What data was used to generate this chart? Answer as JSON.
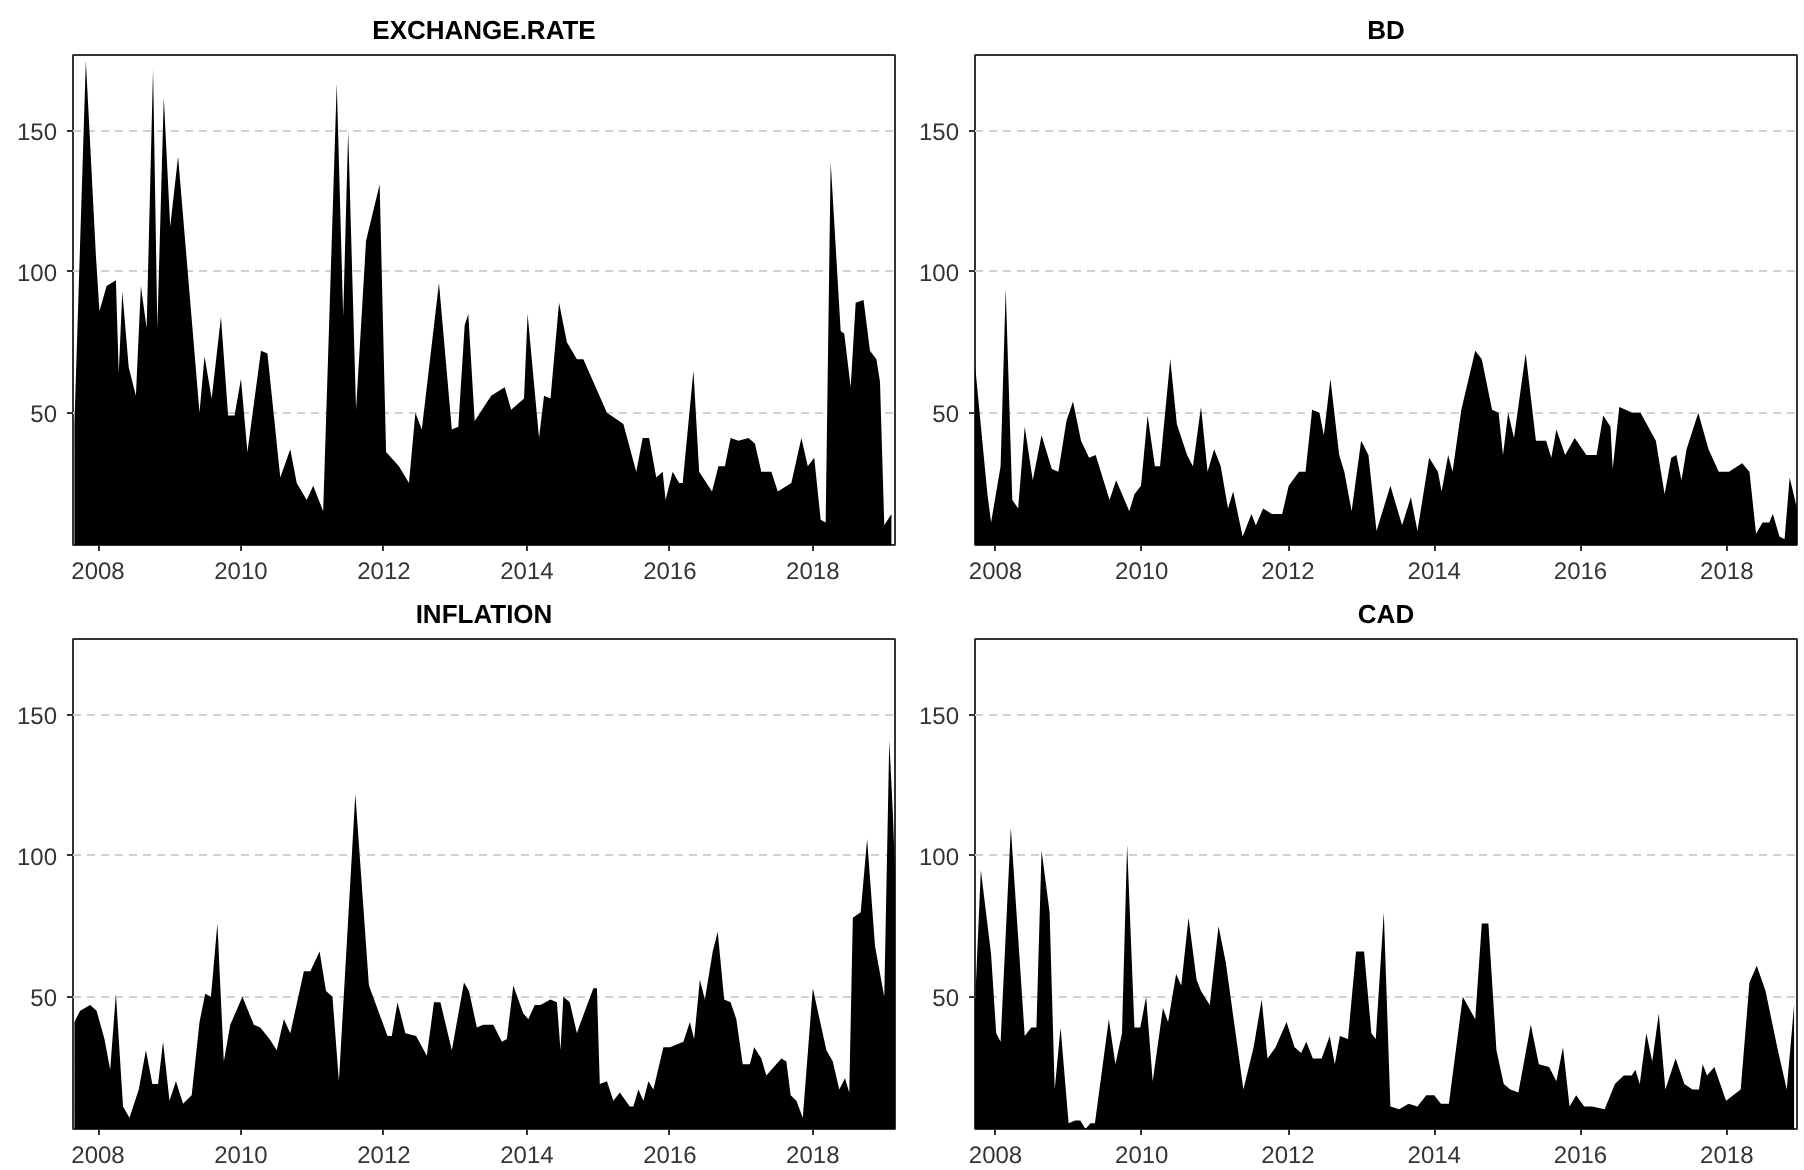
{
  "chart_data": [
    {
      "type": "area",
      "title": "EXCHANGE.RATE",
      "color": "#000000",
      "xlim": [
        2007.65,
        2019.15
      ],
      "ylim": [
        3,
        177
      ],
      "xticks": [
        2008,
        2010,
        2012,
        2014,
        2016,
        2018
      ],
      "yticks": [
        50,
        100,
        150
      ],
      "grid": "y",
      "x": [
        2007.67,
        2007.83,
        2007.97,
        2008.02,
        2008.12,
        2008.25,
        2008.29,
        2008.34,
        2008.43,
        2008.53,
        2008.6,
        2008.68,
        2008.77,
        2008.83,
        2008.92,
        2009.01,
        2009.12,
        2009.2,
        2009.33,
        2009.42,
        2009.49,
        2009.59,
        2009.72,
        2009.82,
        2009.91,
        2010.0,
        2010.09,
        2010.28,
        2010.37,
        2010.55,
        2010.69,
        2010.78,
        2010.92,
        2011.01,
        2011.15,
        2011.34,
        2011.43,
        2011.5,
        2011.61,
        2011.75,
        2011.94,
        2012.03,
        2012.21,
        2012.35,
        2012.44,
        2012.53,
        2012.77,
        2012.95,
        2013.04,
        2013.13,
        2013.18,
        2013.27,
        2013.5,
        2013.69,
        2013.78,
        2013.96,
        2014.01,
        2014.17,
        2014.24,
        2014.33,
        2014.45,
        2014.56,
        2014.7,
        2014.79,
        2015.12,
        2015.35,
        2015.53,
        2015.62,
        2015.71,
        2015.81,
        2015.9,
        2015.94,
        2016.04,
        2016.13,
        2016.18,
        2016.33,
        2016.41,
        2016.59,
        2016.68,
        2016.77,
        2016.85,
        2016.96,
        2017.1,
        2017.19,
        2017.28,
        2017.42,
        2017.51,
        2017.7,
        2017.84,
        2017.93,
        2018.02,
        2018.11,
        2018.18,
        2018.25,
        2018.39,
        2018.44,
        2018.53,
        2018.6,
        2018.71,
        2018.8,
        2018.89,
        2018.94,
        2019.0,
        2019.1
      ],
      "values": [
        46,
        175,
        106,
        86,
        95,
        97,
        64,
        93,
        66,
        56,
        95,
        80,
        172,
        80,
        162,
        116,
        141,
        null,
        null,
        50,
        70,
        55,
        84,
        49,
        49,
        62,
        36,
        72,
        71,
        27,
        37,
        25,
        19,
        24,
        15,
        167,
        84,
        150,
        51,
        111,
        131,
        36,
        31,
        25,
        50,
        44,
        96,
        44,
        45,
        81,
        85,
        47,
        56,
        59,
        51,
        55,
        85,
        41,
        56,
        55,
        89,
        75,
        69,
        69,
        50,
        46,
        29,
        41,
        41,
        27,
        29,
        19,
        29,
        25,
        25,
        65,
        29,
        22,
        31,
        31,
        41,
        40,
        41,
        39,
        29,
        29,
        22,
        25,
        41,
        31,
        34,
        12,
        11,
        139,
        79,
        78,
        59,
        89,
        90,
        72,
        69,
        61,
        10,
        14
      ]
    },
    {
      "type": "area",
      "title": "BD",
      "color": "#000000",
      "xlim": [
        2007.72,
        2018.96
      ],
      "ylim": [
        3,
        177
      ],
      "xticks": [
        2008,
        2010,
        2012,
        2014,
        2016,
        2018
      ],
      "yticks": [
        50,
        100,
        150
      ],
      "grid": "y",
      "x": [
        2007.72,
        2007.89,
        2007.94,
        2008.07,
        2008.14,
        2008.23,
        2008.31,
        2008.4,
        2008.51,
        2008.63,
        2008.77,
        2008.86,
        2008.97,
        2009.06,
        2009.17,
        2009.28,
        2009.37,
        2009.56,
        2009.65,
        2009.83,
        2009.9,
        2009.99,
        2010.08,
        2010.18,
        2010.25,
        2010.39,
        2010.48,
        2010.62,
        2010.7,
        2010.81,
        2010.9,
        2010.99,
        2011.08,
        2011.18,
        2011.25,
        2011.38,
        2011.5,
        2011.56,
        2011.66,
        2011.78,
        2011.92,
        2012.01,
        2012.15,
        2012.24,
        2012.33,
        2012.43,
        2012.49,
        2012.58,
        2012.7,
        2012.77,
        2012.87,
        2013.0,
        2013.1,
        2013.21,
        2013.4,
        2013.56,
        2013.68,
        2013.77,
        2013.93,
        2014.05,
        2014.1,
        2014.19,
        2014.25,
        2014.37,
        2014.56,
        2014.65,
        2014.79,
        2014.88,
        2014.94,
        2015.01,
        2015.09,
        2015.25,
        2015.39,
        2015.53,
        2015.6,
        2015.67,
        2015.79,
        2015.92,
        2016.08,
        2016.22,
        2016.31,
        2016.41,
        2016.44,
        2016.53,
        2016.71,
        2016.82,
        2017.03,
        2017.15,
        2017.24,
        2017.31,
        2017.38,
        2017.45,
        2017.61,
        2017.75,
        2017.89,
        2018.03,
        2018.21,
        2018.31,
        2018.4,
        2018.49,
        2018.58,
        2018.63,
        2018.72,
        2018.79,
        2018.86,
        2018.96
      ],
      "values": [
        67,
        21,
        11,
        31,
        94,
        19,
        16,
        45,
        26,
        42,
        30,
        29,
        47,
        54,
        40,
        34,
        35,
        19,
        26,
        15,
        21,
        24,
        49,
        31,
        31,
        69,
        46,
        35,
        31,
        52,
        29,
        37,
        31,
        16,
        22,
        6,
        14,
        10,
        16,
        14,
        14,
        24,
        29,
        29,
        51,
        50,
        42,
        62,
        35,
        29,
        15,
        40,
        35,
        8,
        24,
        10,
        20,
        8,
        34,
        29,
        22,
        35,
        29,
        51,
        72,
        69,
        51,
        50,
        35,
        50,
        41,
        71,
        40,
        40,
        34,
        44,
        35,
        41,
        35,
        35,
        49,
        45,
        30,
        52,
        50,
        50,
        40,
        21,
        34,
        35,
        26,
        37,
        50,
        37,
        29,
        29,
        32,
        29,
        7,
        11,
        11,
        14,
        6,
        5,
        27,
        16
      ]
    },
    {
      "type": "area",
      "title": "INFLATION",
      "color": "#000000",
      "xlim": [
        2007.65,
        2019.15
      ],
      "ylim": [
        3,
        177
      ],
      "xticks": [
        2008,
        2010,
        2012,
        2014,
        2016,
        2018
      ],
      "yticks": [
        50,
        100,
        150
      ],
      "grid": "y",
      "x": [
        2007.67,
        2007.75,
        2007.89,
        2007.98,
        2008.09,
        2008.17,
        2008.25,
        2008.35,
        2008.44,
        2008.57,
        2008.67,
        2008.76,
        2008.84,
        2008.91,
        2009.0,
        2009.09,
        2009.19,
        2009.31,
        2009.42,
        2009.5,
        2009.58,
        2009.67,
        2009.76,
        2009.85,
        2010.02,
        2010.18,
        2010.27,
        2010.4,
        2010.5,
        2010.6,
        2010.69,
        2010.88,
        2010.97,
        2011.1,
        2011.19,
        2011.28,
        2011.37,
        2011.6,
        2011.79,
        2012.05,
        2012.11,
        2012.19,
        2012.3,
        2012.45,
        2012.6,
        2012.7,
        2012.79,
        2012.95,
        2013.12,
        2013.19,
        2013.3,
        2013.39,
        2013.53,
        2013.65,
        2013.72,
        2013.81,
        2013.95,
        2014.02,
        2014.11,
        2014.19,
        2014.33,
        2014.42,
        2014.47,
        2014.51,
        2014.6,
        2014.7,
        2014.74,
        2014.93,
        2014.98,
        2015.02,
        2015.12,
        2015.21,
        2015.3,
        2015.44,
        2015.49,
        2015.56,
        2015.63,
        2015.7,
        2015.77,
        2015.91,
        2016.0,
        2016.19,
        2016.28,
        2016.34,
        2016.42,
        2016.49,
        2016.6,
        2016.67,
        2016.76,
        2016.85,
        2016.93,
        2017.02,
        2017.12,
        2017.18,
        2017.28,
        2017.35,
        2017.56,
        2017.63,
        2017.69,
        2017.77,
        2017.86,
        2018.0,
        2018.19,
        2018.28,
        2018.37,
        2018.45,
        2018.51,
        2018.56,
        2018.67,
        2018.76,
        2018.87,
        2019.0,
        2019.07,
        2019.12,
        2019.15
      ],
      "values": [
        41,
        45,
        47,
        45,
        35,
        24,
        51,
        11,
        7,
        17,
        31,
        19,
        19,
        34,
        13,
        20,
        12,
        15,
        41,
        51,
        50,
        76,
        27,
        40,
        50,
        40,
        39,
        35,
        31,
        42,
        37,
        59,
        59,
        66,
        52,
        50,
        20,
        122,
        54,
        36,
        36,
        48,
        37,
        36,
        29,
        48,
        48,
        31,
        55,
        52,
        39,
        40,
        40,
        34,
        35,
        54,
        44,
        42,
        47,
        47,
        49,
        48,
        31,
        50,
        48,
        37,
        40,
        53,
        53,
        19,
        20,
        13,
        16,
        11,
        11,
        17,
        13,
        20,
        17,
        32,
        32,
        34,
        41,
        35,
        56,
        49,
        66,
        73,
        49,
        48,
        42,
        26,
        26,
        32,
        28,
        22,
        28,
        27,
        15,
        13,
        7,
        53,
        31,
        27,
        17,
        21,
        16,
        78,
        80,
        106,
        68,
        50,
        141,
        115,
        95
      ]
    },
    {
      "type": "area",
      "title": "CAD",
      "color": "#000000",
      "xlim": [
        2007.72,
        2018.96
      ],
      "ylim": [
        3,
        177
      ],
      "xticks": [
        2008,
        2010,
        2012,
        2014,
        2016,
        2018
      ],
      "yticks": [
        50,
        100,
        150
      ],
      "grid": "y",
      "x": [
        2007.72,
        2007.8,
        2007.94,
        2008.01,
        2008.07,
        2008.21,
        2008.4,
        2008.49,
        2008.56,
        2008.63,
        2008.74,
        2008.81,
        2008.89,
        2009.0,
        2009.09,
        2009.16,
        2009.23,
        2009.3,
        2009.36,
        2009.55,
        2009.64,
        2009.73,
        2009.8,
        2009.9,
        2009.98,
        2010.06,
        2010.15,
        2010.29,
        2010.36,
        2010.47,
        2010.54,
        2010.64,
        2010.75,
        2010.81,
        2010.93,
        2011.05,
        2011.15,
        2011.39,
        2011.53,
        2011.64,
        2011.72,
        2011.83,
        2011.98,
        2012.09,
        2012.18,
        2012.25,
        2012.34,
        2012.46,
        2012.57,
        2012.64,
        2012.71,
        2012.82,
        2012.93,
        2013.04,
        2013.14,
        2013.2,
        2013.31,
        2013.4,
        2013.52,
        2013.65,
        2013.77,
        2013.89,
        2014.0,
        2014.09,
        2014.2,
        2014.39,
        2014.56,
        2014.65,
        2014.74,
        2014.85,
        2014.95,
        2015.04,
        2015.15,
        2015.32,
        2015.43,
        2015.57,
        2015.67,
        2015.76,
        2015.85,
        2015.94,
        2016.05,
        2016.16,
        2016.33,
        2016.47,
        2016.59,
        2016.7,
        2016.75,
        2016.81,
        2016.9,
        2016.98,
        2017.07,
        2017.16,
        2017.3,
        2017.42,
        2017.53,
        2017.62,
        2017.67,
        2017.73,
        2017.83,
        2017.99,
        2018.19,
        2018.31,
        2018.41,
        2018.53,
        2018.69,
        2018.82,
        2018.92
      ],
      "values": [
        47,
        95,
        65,
        37,
        34,
        110,
        36,
        39,
        39,
        102,
        80,
        17,
        39,
        5,
        6,
        6,
        3,
        5,
        5,
        42,
        26,
        37,
        104,
        39,
        39,
        50,
        20,
        46,
        41,
        58,
        54,
        78,
        56,
        52,
        47,
        75,
        62,
        17,
        32,
        49,
        28,
        32,
        41,
        32,
        30,
        34,
        28,
        28,
        36,
        26,
        36,
        35,
        66,
        66,
        37,
        35,
        80,
        11,
        10,
        12,
        11,
        15,
        15,
        12,
        12,
        50,
        42,
        76,
        76,
        31,
        19,
        17,
        16,
        40,
        26,
        25,
        20,
        32,
        11,
        15,
        11,
        11,
        10,
        19,
        22,
        22,
        24,
        19,
        37,
        27,
        44,
        17,
        28,
        19,
        17,
        17,
        26,
        22,
        25,
        13,
        17,
        55,
        61,
        52,
        32,
        17,
        47
      ]
    }
  ]
}
